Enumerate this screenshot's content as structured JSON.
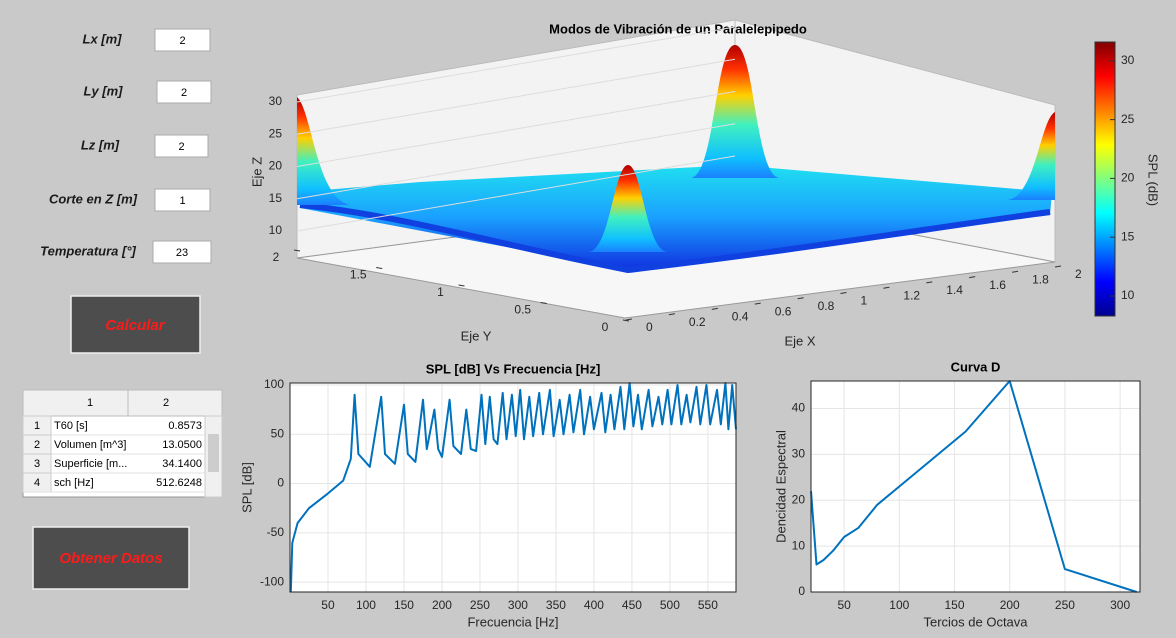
{
  "inputs": [
    {
      "label": "Lx [m]",
      "value": "2"
    },
    {
      "label": "Ly [m]",
      "value": "2"
    },
    {
      "label": "Lz [m]",
      "value": "2"
    },
    {
      "label": "Corte en Z [m]",
      "value": "1"
    },
    {
      "label": "Temperatura [°]",
      "value": "23"
    }
  ],
  "buttons": {
    "calcular": "Calcular",
    "obtener": "Obtener Datos"
  },
  "table": {
    "columns": [
      "1",
      "2"
    ],
    "rows": [
      [
        "1",
        "T60 [s]",
        "0.8573"
      ],
      [
        "2",
        "Volumen [m^3]",
        "13.0500"
      ],
      [
        "3",
        "Superficie [m...",
        "34.1400"
      ],
      [
        "4",
        "sch [Hz]",
        "512.6248"
      ]
    ]
  },
  "surface": {
    "title": "Modos de Vibración de un Paralelepipedo",
    "xlabel": "Eje X",
    "ylabel": "Eje Y",
    "zlabel": "Eje Z",
    "xlim": [
      0,
      2
    ],
    "xticks": [
      0,
      0.2,
      0.4,
      0.6,
      0.8,
      1,
      1.2,
      1.4,
      1.6,
      1.8,
      2
    ],
    "ylim": [
      0,
      2
    ],
    "yticks": [
      0,
      0.5,
      1,
      1.5,
      2
    ],
    "zlim": [
      7.5,
      31.5
    ],
    "zticks": [
      10,
      15,
      20,
      25,
      30
    ],
    "colorbar": {
      "label": "SPL (dB)",
      "lim": [
        8.3,
        31.6
      ],
      "ticks": [
        10,
        15,
        20,
        25,
        30
      ]
    }
  },
  "chart_data": [
    {
      "type": "line",
      "title": "SPL [dB] Vs Frecuencia [Hz]",
      "xlabel": "Frecuencia [Hz]",
      "ylabel": "SPL [dB]",
      "xlim": [
        0,
        587
      ],
      "ylim": [
        -110,
        102
      ],
      "xticks": [
        50,
        100,
        150,
        200,
        250,
        300,
        350,
        400,
        450,
        500,
        550
      ],
      "yticks": [
        -100,
        -50,
        0,
        50,
        100
      ],
      "grid": true,
      "color": "#0072bd",
      "x": [
        1,
        3,
        10,
        25,
        50,
        70,
        80,
        85,
        90,
        105,
        120,
        125,
        138,
        150,
        155,
        165,
        175,
        180,
        190,
        195,
        200,
        210,
        215,
        225,
        232,
        238,
        245,
        252,
        257,
        263,
        268,
        273,
        280,
        285,
        292,
        297,
        303,
        308,
        315,
        320,
        328,
        333,
        342,
        347,
        355,
        360,
        368,
        373,
        382,
        387,
        395,
        400,
        410,
        415,
        422,
        427,
        435,
        440,
        447,
        452,
        458,
        463,
        472,
        477,
        485,
        490,
        497,
        502,
        510,
        515,
        522,
        527,
        535,
        540,
        548,
        553,
        562,
        567,
        573,
        577,
        582,
        587
      ],
      "values": [
        -110,
        -60,
        -40,
        -25,
        -10,
        3,
        25,
        90,
        30,
        17,
        88,
        30,
        20,
        80,
        30,
        22,
        85,
        35,
        75,
        35,
        27,
        85,
        38,
        30,
        75,
        35,
        33,
        90,
        40,
        88,
        45,
        40,
        92,
        45,
        90,
        48,
        95,
        45,
        88,
        48,
        92,
        50,
        95,
        48,
        85,
        50,
        90,
        52,
        95,
        50,
        88,
        55,
        92,
        52,
        90,
        55,
        98,
        55,
        102,
        58,
        90,
        55,
        95,
        58,
        88,
        60,
        95,
        60,
        100,
        60,
        90,
        62,
        98,
        60,
        100,
        60,
        95,
        60,
        102,
        55,
        100,
        55
      ]
    },
    {
      "type": "line",
      "title": "Curva D",
      "xlabel": "Tercios de Octava",
      "ylabel": "Dencidad Espectral",
      "xlim": [
        20,
        318
      ],
      "ylim": [
        0,
        46
      ],
      "xticks": [
        50,
        100,
        150,
        200,
        250,
        300
      ],
      "yticks": [
        0,
        10,
        20,
        30,
        40
      ],
      "grid": true,
      "color": "#0072bd",
      "x": [
        20,
        25,
        31.5,
        40,
        50,
        63,
        80,
        100,
        125,
        160,
        200,
        250,
        315
      ],
      "values": [
        22,
        6,
        7,
        9,
        12,
        14,
        19,
        23,
        28,
        35,
        46,
        5,
        0
      ]
    }
  ]
}
